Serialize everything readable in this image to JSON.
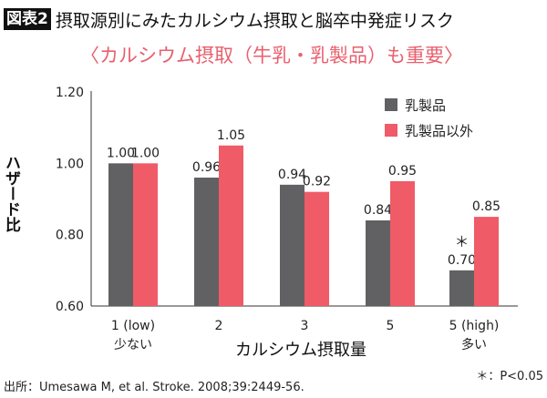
{
  "header": {
    "badge": "図表2",
    "title": "摂取源別にみたカルシウム摂取と脳卒中発症リスク",
    "subtitle": "〈カルシウム摂取（牛乳・乳製品）も重要〉"
  },
  "footer": {
    "source": "出所：Umesawa M, et al. Stroke. 2008;39:2449-56.",
    "note": "＊：P<0.05"
  },
  "chart_data": {
    "type": "bar",
    "title": "",
    "ylabel": "ハザード比",
    "xlabel": "カルシウム摂取量",
    "ylim": [
      0.6,
      1.2
    ],
    "yticks": [
      "0.60",
      "0.80",
      "1.00",
      "1.20"
    ],
    "ytick_values": [
      0.6,
      0.8,
      1.0,
      1.2
    ],
    "categories": [
      "1 (low)",
      "2",
      "3",
      "5",
      "5 (high)"
    ],
    "category_sublabels": [
      "少ない",
      "",
      "",
      "",
      "多い"
    ],
    "series": [
      {
        "name": "乳製品",
        "color": "#616163",
        "values": [
          1.0,
          0.96,
          0.94,
          0.84,
          0.7
        ],
        "labels": [
          "1.00",
          "0.96",
          "0.94",
          "0.84",
          "0.70"
        ]
      },
      {
        "name": "乳製品以外",
        "color": "#ef5b67",
        "values": [
          1.0,
          1.05,
          0.92,
          0.95,
          0.85
        ],
        "labels": [
          "1.00",
          "1.05",
          "0.92",
          "0.95",
          "0.85"
        ]
      }
    ],
    "annotations": [
      {
        "series": 0,
        "category": 4,
        "text": "＊"
      }
    ],
    "legend": "top-right",
    "grid": false
  },
  "colors": {
    "accent": "#e8606e",
    "badge_bg": "#111111"
  }
}
